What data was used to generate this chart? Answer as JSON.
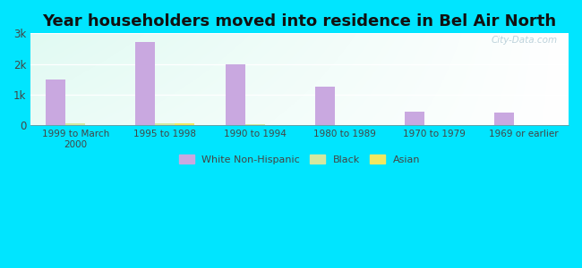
{
  "title": "Year householders moved into residence in Bel Air North",
  "categories": [
    "1999 to March\n2000",
    "1995 to 1998",
    "1990 to 1994",
    "1980 to 1989",
    "1970 to 1979",
    "1969 or earlier"
  ],
  "series": {
    "White Non-Hispanic": [
      1500,
      2720,
      2000,
      1250,
      450,
      430
    ],
    "Black": [
      60,
      70,
      30,
      0,
      0,
      0
    ],
    "Asian": [
      0,
      80,
      20,
      0,
      0,
      0
    ]
  },
  "colors": {
    "White Non-Hispanic": "#c9a8e0",
    "Black": "#d4e8a0",
    "Asian": "#f0e860"
  },
  "ylim": [
    0,
    3000
  ],
  "yticks": [
    0,
    1000,
    2000,
    3000
  ],
  "ytick_labels": [
    "0",
    "1k",
    "2k",
    "3k"
  ],
  "background_outer": "#00e5ff",
  "bar_width": 0.22,
  "title_fontsize": 13,
  "watermark": "City-Data.com"
}
